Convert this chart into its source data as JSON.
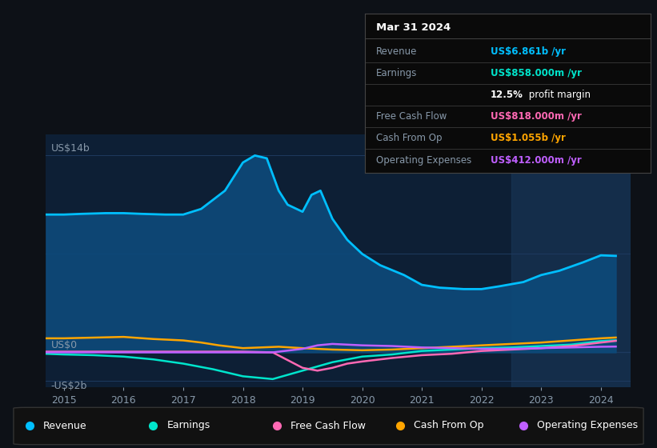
{
  "background_color": "#0d1117",
  "plot_bg_color": "#0d1f35",
  "grid_color": "#1e3a5f",
  "text_color": "#8899aa",
  "ylim": [
    -2.5,
    15.5
  ],
  "xlim": [
    2014.7,
    2024.5
  ],
  "xticks": [
    2015,
    2016,
    2017,
    2018,
    2019,
    2020,
    2021,
    2022,
    2023,
    2024
  ],
  "series": {
    "Revenue": {
      "color": "#00bfff",
      "fill_color": "#0d4a7a",
      "x": [
        2014.7,
        2015.0,
        2015.3,
        2015.7,
        2016.0,
        2016.3,
        2016.7,
        2017.0,
        2017.3,
        2017.7,
        2018.0,
        2018.2,
        2018.4,
        2018.6,
        2018.75,
        2019.0,
        2019.15,
        2019.3,
        2019.5,
        2019.75,
        2020.0,
        2020.3,
        2020.7,
        2021.0,
        2021.3,
        2021.7,
        2022.0,
        2022.3,
        2022.7,
        2023.0,
        2023.3,
        2023.7,
        2024.0,
        2024.25
      ],
      "y": [
        9.8,
        9.8,
        9.85,
        9.9,
        9.9,
        9.85,
        9.8,
        9.8,
        10.2,
        11.5,
        13.5,
        14.0,
        13.8,
        11.5,
        10.5,
        10.0,
        11.2,
        11.5,
        9.5,
        8.0,
        7.0,
        6.2,
        5.5,
        4.8,
        4.6,
        4.5,
        4.5,
        4.7,
        5.0,
        5.5,
        5.8,
        6.4,
        6.9,
        6.861
      ]
    },
    "Earnings": {
      "color": "#00e5cc",
      "x": [
        2014.7,
        2015.0,
        2015.5,
        2016.0,
        2016.5,
        2017.0,
        2017.5,
        2018.0,
        2018.5,
        2019.0,
        2019.5,
        2020.0,
        2020.5,
        2021.0,
        2021.5,
        2022.0,
        2022.5,
        2023.0,
        2023.5,
        2024.0,
        2024.25
      ],
      "y": [
        -0.1,
        -0.15,
        -0.2,
        -0.3,
        -0.5,
        -0.8,
        -1.2,
        -1.7,
        -1.9,
        -1.3,
        -0.7,
        -0.3,
        -0.15,
        0.1,
        0.2,
        0.3,
        0.35,
        0.45,
        0.55,
        0.8,
        0.858
      ]
    },
    "Free Cash Flow": {
      "color": "#ff69b4",
      "x": [
        2014.7,
        2015.0,
        2015.5,
        2016.0,
        2016.5,
        2017.0,
        2017.5,
        2018.0,
        2018.5,
        2019.0,
        2019.25,
        2019.5,
        2019.75,
        2020.0,
        2020.5,
        2021.0,
        2021.5,
        2022.0,
        2022.5,
        2023.0,
        2023.5,
        2024.0,
        2024.25
      ],
      "y": [
        0.05,
        0.05,
        0.05,
        0.05,
        0.05,
        0.05,
        0.05,
        0.05,
        0.0,
        -1.1,
        -1.3,
        -1.1,
        -0.8,
        -0.65,
        -0.4,
        -0.2,
        -0.1,
        0.1,
        0.2,
        0.3,
        0.45,
        0.7,
        0.818
      ]
    },
    "Cash From Op": {
      "color": "#ffa500",
      "x": [
        2014.7,
        2015.0,
        2015.5,
        2016.0,
        2016.5,
        2017.0,
        2017.3,
        2017.6,
        2018.0,
        2018.3,
        2018.6,
        2019.0,
        2019.5,
        2020.0,
        2020.5,
        2021.0,
        2021.5,
        2022.0,
        2022.5,
        2023.0,
        2023.5,
        2024.0,
        2024.25
      ],
      "y": [
        1.0,
        1.0,
        1.05,
        1.1,
        0.95,
        0.85,
        0.7,
        0.5,
        0.3,
        0.35,
        0.4,
        0.3,
        0.2,
        0.15,
        0.2,
        0.3,
        0.4,
        0.5,
        0.6,
        0.7,
        0.85,
        1.0,
        1.055
      ]
    },
    "Operating Expenses": {
      "color": "#bf5fff",
      "x": [
        2014.7,
        2015.0,
        2015.5,
        2016.0,
        2016.5,
        2017.0,
        2017.5,
        2018.0,
        2018.5,
        2019.0,
        2019.25,
        2019.5,
        2019.75,
        2020.0,
        2020.5,
        2021.0,
        2021.5,
        2022.0,
        2022.5,
        2023.0,
        2023.5,
        2024.0,
        2024.25
      ],
      "y": [
        0.0,
        0.0,
        0.0,
        0.0,
        0.0,
        0.0,
        0.0,
        0.0,
        0.0,
        0.25,
        0.5,
        0.6,
        0.55,
        0.5,
        0.45,
        0.35,
        0.3,
        0.25,
        0.25,
        0.3,
        0.35,
        0.4,
        0.412
      ]
    }
  },
  "shaded_region": [
    2022.5,
    2024.5
  ],
  "legend": [
    {
      "label": "Revenue",
      "color": "#00bfff"
    },
    {
      "label": "Earnings",
      "color": "#00e5cc"
    },
    {
      "label": "Free Cash Flow",
      "color": "#ff69b4"
    },
    {
      "label": "Cash From Op",
      "color": "#ffa500"
    },
    {
      "label": "Operating Expenses",
      "color": "#bf5fff"
    }
  ],
  "info_box": {
    "title": "Mar 31 2024",
    "bg_color": "#0a0a0a",
    "border_color": "#444444",
    "row_labels": [
      "Revenue",
      "Earnings",
      "",
      "Free Cash Flow",
      "Cash From Op",
      "Operating Expenses"
    ],
    "row_values": [
      "US$6.861b /yr",
      "US$858.000m /yr",
      "12.5% profit margin",
      "US$818.000m /yr",
      "US$1.055b /yr",
      "US$412.000m /yr"
    ],
    "row_value_colors": [
      "#00bfff",
      "#00e5cc",
      "#ffffff",
      "#ff69b4",
      "#ffa500",
      "#bf5fff"
    ]
  }
}
